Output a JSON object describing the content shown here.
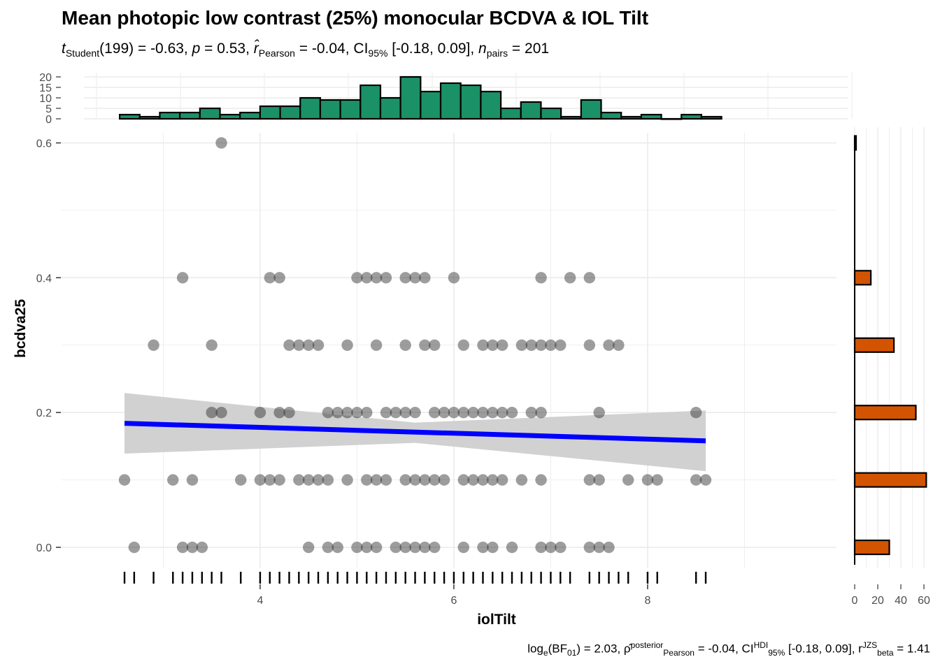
{
  "title": "Mean photopic low contrast (25%) monocular BCDVA & IOL Tilt",
  "subtitle": {
    "t_symbol": "t",
    "t_sub": "Student",
    "t_value": "(199) = -0.63, ",
    "p_symbol": "p",
    "p_value": " = 0.53, ",
    "r_symbol": "r̂",
    "r_sub": "Pearson",
    "r_value": " = -0.04, CI",
    "ci_sub": "95%",
    "ci_value": " [-0.18, 0.09], ",
    "n_symbol": "n",
    "n_sub": "pairs",
    "n_value": " = 201"
  },
  "caption": {
    "bf_prefix": "log",
    "bf_prefix_sub": "e",
    "bf_label": "(BF",
    "bf_sub": "01",
    "bf_value": ") = 2.03, ρ̂",
    "rho_sup": "posterior",
    "rho_sub": "Pearson",
    "rho_value": " = -0.04, CI",
    "ci_sup": "HDI",
    "ci_sub": "95%",
    "ci_value": " [-0.18, 0.09], r",
    "r_sup": "JZS",
    "r_sub": "beta",
    "r_value": " = 1.41"
  },
  "chart_data": {
    "type": "scatter",
    "xlabel": "iolTilt",
    "ylabel": "bcdva25",
    "xlim": [
      1.95,
      9.95
    ],
    "ylim": [
      -0.03,
      0.615
    ],
    "x_ticks": [
      4,
      6,
      8
    ],
    "y_ticks": [
      0.0,
      0.2,
      0.4,
      0.6
    ],
    "grid": true,
    "points": [
      [
        3.6,
        0.6
      ],
      [
        3.2,
        0.4
      ],
      [
        4.1,
        0.4
      ],
      [
        4.2,
        0.4
      ],
      [
        5.0,
        0.4
      ],
      [
        5.1,
        0.4
      ],
      [
        5.2,
        0.4
      ],
      [
        5.3,
        0.4
      ],
      [
        5.5,
        0.4
      ],
      [
        5.6,
        0.4
      ],
      [
        5.7,
        0.4
      ],
      [
        6.0,
        0.4
      ],
      [
        6.9,
        0.4
      ],
      [
        7.2,
        0.4
      ],
      [
        7.4,
        0.4
      ],
      [
        2.9,
        0.3
      ],
      [
        3.5,
        0.3
      ],
      [
        4.3,
        0.3
      ],
      [
        4.4,
        0.3
      ],
      [
        4.5,
        0.3
      ],
      [
        4.6,
        0.3
      ],
      [
        4.9,
        0.3
      ],
      [
        5.2,
        0.3
      ],
      [
        5.5,
        0.3
      ],
      [
        5.7,
        0.3
      ],
      [
        5.8,
        0.3
      ],
      [
        6.1,
        0.3
      ],
      [
        6.3,
        0.3
      ],
      [
        6.4,
        0.3
      ],
      [
        6.5,
        0.3
      ],
      [
        6.7,
        0.3
      ],
      [
        6.8,
        0.3
      ],
      [
        6.9,
        0.3
      ],
      [
        7.0,
        0.3
      ],
      [
        7.1,
        0.3
      ],
      [
        7.4,
        0.3
      ],
      [
        7.6,
        0.3
      ],
      [
        7.7,
        0.3
      ],
      [
        3.5,
        0.2
      ],
      [
        3.6,
        0.2
      ],
      [
        4.0,
        0.2
      ],
      [
        4.2,
        0.2
      ],
      [
        4.3,
        0.2
      ],
      [
        4.7,
        0.2
      ],
      [
        4.8,
        0.2
      ],
      [
        4.9,
        0.2
      ],
      [
        5.0,
        0.2
      ],
      [
        5.1,
        0.2
      ],
      [
        5.3,
        0.2
      ],
      [
        5.4,
        0.2
      ],
      [
        5.5,
        0.2
      ],
      [
        5.6,
        0.2
      ],
      [
        5.8,
        0.2
      ],
      [
        5.9,
        0.2
      ],
      [
        6.0,
        0.2
      ],
      [
        6.1,
        0.2
      ],
      [
        6.2,
        0.2
      ],
      [
        6.3,
        0.2
      ],
      [
        6.4,
        0.2
      ],
      [
        6.5,
        0.2
      ],
      [
        6.6,
        0.2
      ],
      [
        6.8,
        0.2
      ],
      [
        6.9,
        0.2
      ],
      [
        7.5,
        0.2
      ],
      [
        8.5,
        0.2
      ],
      [
        2.6,
        0.1
      ],
      [
        3.1,
        0.1
      ],
      [
        3.3,
        0.1
      ],
      [
        3.8,
        0.1
      ],
      [
        4.0,
        0.1
      ],
      [
        4.1,
        0.1
      ],
      [
        4.2,
        0.1
      ],
      [
        4.4,
        0.1
      ],
      [
        4.5,
        0.1
      ],
      [
        4.6,
        0.1
      ],
      [
        4.7,
        0.1
      ],
      [
        4.9,
        0.1
      ],
      [
        5.1,
        0.1
      ],
      [
        5.2,
        0.1
      ],
      [
        5.3,
        0.1
      ],
      [
        5.5,
        0.1
      ],
      [
        5.6,
        0.1
      ],
      [
        5.7,
        0.1
      ],
      [
        5.8,
        0.1
      ],
      [
        5.9,
        0.1
      ],
      [
        6.1,
        0.1
      ],
      [
        6.2,
        0.1
      ],
      [
        6.3,
        0.1
      ],
      [
        6.4,
        0.1
      ],
      [
        6.5,
        0.1
      ],
      [
        6.7,
        0.1
      ],
      [
        6.9,
        0.1
      ],
      [
        7.4,
        0.1
      ],
      [
        7.5,
        0.1
      ],
      [
        7.8,
        0.1
      ],
      [
        8.0,
        0.1
      ],
      [
        8.1,
        0.1
      ],
      [
        8.5,
        0.1
      ],
      [
        8.6,
        0.1
      ],
      [
        2.7,
        0.0
      ],
      [
        3.2,
        0.0
      ],
      [
        3.3,
        0.0
      ],
      [
        3.4,
        0.0
      ],
      [
        4.5,
        0.0
      ],
      [
        4.7,
        0.0
      ],
      [
        4.8,
        0.0
      ],
      [
        5.0,
        0.0
      ],
      [
        5.1,
        0.0
      ],
      [
        5.2,
        0.0
      ],
      [
        5.4,
        0.0
      ],
      [
        5.5,
        0.0
      ],
      [
        5.6,
        0.0
      ],
      [
        5.7,
        0.0
      ],
      [
        5.8,
        0.0
      ],
      [
        6.1,
        0.0
      ],
      [
        6.3,
        0.0
      ],
      [
        6.4,
        0.0
      ],
      [
        6.6,
        0.0
      ],
      [
        6.9,
        0.0
      ],
      [
        7.0,
        0.0
      ],
      [
        7.1,
        0.0
      ],
      [
        7.4,
        0.0
      ],
      [
        7.5,
        0.0
      ],
      [
        7.6,
        0.0
      ]
    ],
    "point_color": "#262626",
    "point_alpha": 0.45,
    "regression": {
      "x": [
        2.6,
        8.6
      ],
      "y": [
        0.184,
        0.158
      ],
      "ci_low_x": [
        2.6,
        5.6,
        8.6
      ],
      "ci_low_y": [
        0.139,
        0.155,
        0.113
      ],
      "ci_high_x": [
        2.6,
        5.6,
        8.6
      ],
      "ci_high_y": [
        0.229,
        0.185,
        0.203
      ],
      "line_color": "#0000ff",
      "band_color": "#d1d1d1"
    },
    "rug_x": [
      2.6,
      2.7,
      2.9,
      3.1,
      3.2,
      3.3,
      3.4,
      3.5,
      3.6,
      3.8,
      4.0,
      4.1,
      4.2,
      4.3,
      4.4,
      4.5,
      4.6,
      4.7,
      4.8,
      4.9,
      5.0,
      5.1,
      5.2,
      5.3,
      5.4,
      5.5,
      5.6,
      5.7,
      5.8,
      5.9,
      6.0,
      6.1,
      6.2,
      6.3,
      6.4,
      6.5,
      6.6,
      6.7,
      6.8,
      6.9,
      7.0,
      7.1,
      7.2,
      7.4,
      7.5,
      7.6,
      7.7,
      7.8,
      8.0,
      8.1,
      8.5,
      8.6
    ],
    "x_histogram": {
      "color": "#1b9167",
      "ylim": [
        0,
        20
      ],
      "y_ticks": [
        0,
        5,
        10,
        15,
        20
      ],
      "bin_start": 2.55,
      "bin_width": 0.2071,
      "counts": [
        2,
        1,
        3,
        3,
        5,
        2,
        3,
        6,
        6,
        10,
        9,
        9,
        16,
        10,
        20,
        13,
        17,
        16,
        13,
        5,
        8,
        5,
        1,
        9,
        3,
        1,
        2,
        0,
        2,
        1
      ]
    },
    "y_histogram": {
      "color": "#d35400",
      "xlim": [
        0,
        63
      ],
      "x_ticks": [
        0,
        20,
        40,
        60
      ],
      "bins": [
        0.0,
        0.1,
        0.2,
        0.3,
        0.4,
        0.5,
        0.6
      ],
      "counts": [
        30,
        62,
        53,
        34,
        14,
        0,
        1
      ]
    }
  }
}
